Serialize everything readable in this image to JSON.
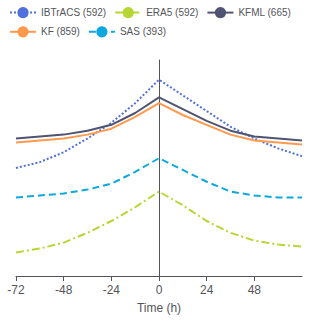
{
  "chart_data": {
    "type": "line",
    "x": [
      -72,
      -60,
      -48,
      -36,
      -24,
      -12,
      0,
      12,
      24,
      36,
      48,
      60,
      72
    ],
    "series": [
      {
        "name": "IBTrACS (592)",
        "line_style": "dotted",
        "values": [
          0.55,
          0.58,
          0.63,
          0.7,
          0.78,
          0.88,
          1.0,
          0.92,
          0.84,
          0.76,
          0.7,
          0.65,
          0.61
        ]
      },
      {
        "name": "ERA5 (592)",
        "line_style": "dashdot",
        "values": [
          0.12,
          0.14,
          0.17,
          0.22,
          0.28,
          0.35,
          0.43,
          0.36,
          0.28,
          0.22,
          0.18,
          0.16,
          0.15
        ]
      },
      {
        "name": "KFML (665)",
        "line_style": "solid",
        "values": [
          0.7,
          0.71,
          0.72,
          0.74,
          0.77,
          0.83,
          0.91,
          0.85,
          0.79,
          0.74,
          0.71,
          0.7,
          0.69
        ]
      },
      {
        "name": "KF (859)",
        "line_style": "solid",
        "values": [
          0.68,
          0.69,
          0.7,
          0.72,
          0.75,
          0.81,
          0.88,
          0.82,
          0.77,
          0.72,
          0.69,
          0.68,
          0.67
        ]
      },
      {
        "name": "SAS (393)",
        "line_style": "dashed",
        "values": [
          0.4,
          0.41,
          0.42,
          0.44,
          0.47,
          0.53,
          0.6,
          0.54,
          0.48,
          0.43,
          0.41,
          0.4,
          0.4
        ]
      }
    ],
    "xlabel": "Time (h)",
    "xlim": [
      -72,
      72
    ],
    "xticks": [
      -72,
      -48,
      -24,
      0,
      24,
      48
    ],
    "ylim": [
      0.0,
      1.1
    ],
    "yticks": [],
    "tick_labels": "x",
    "grid": false,
    "legend": "upper left"
  }
}
